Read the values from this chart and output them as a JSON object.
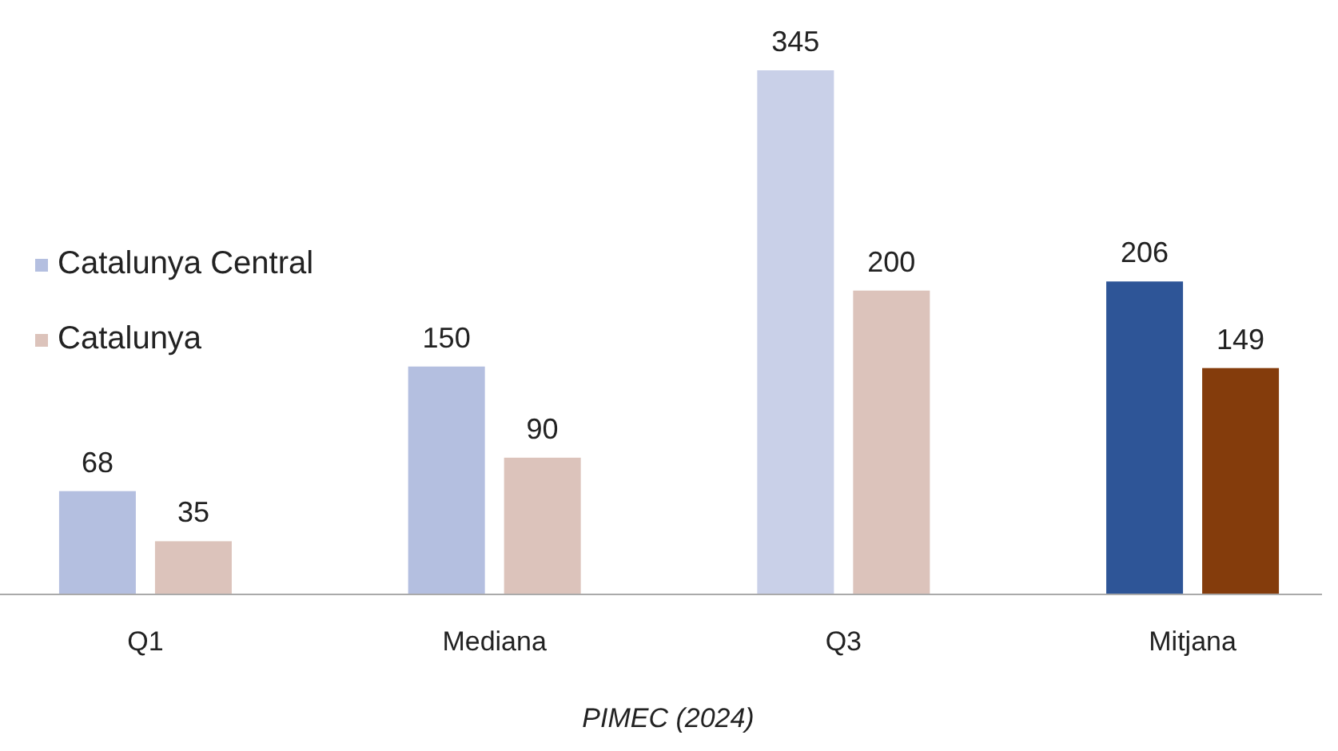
{
  "chart_data": {
    "type": "bar",
    "categories": [
      "Q1",
      "Mediana",
      "Q3",
      "Mitjana"
    ],
    "series": [
      {
        "name": "Catalunya Central",
        "color": "#b4bfe0",
        "colors": [
          "#b4bfe0",
          "#b4bfe0",
          "#c9d0e8",
          "#2e5597"
        ],
        "values": [
          68,
          150,
          345,
          206
        ]
      },
      {
        "name": "Catalunya",
        "color": "#dcc3bb",
        "colors": [
          "#dcc3bb",
          "#dcc3bb",
          "#dcc3bb",
          "#843c0c"
        ],
        "values": [
          35,
          90,
          200,
          149
        ]
      }
    ],
    "data_labels": true,
    "legend": "left",
    "annotations": [
      "PIMEC (2024)"
    ]
  }
}
